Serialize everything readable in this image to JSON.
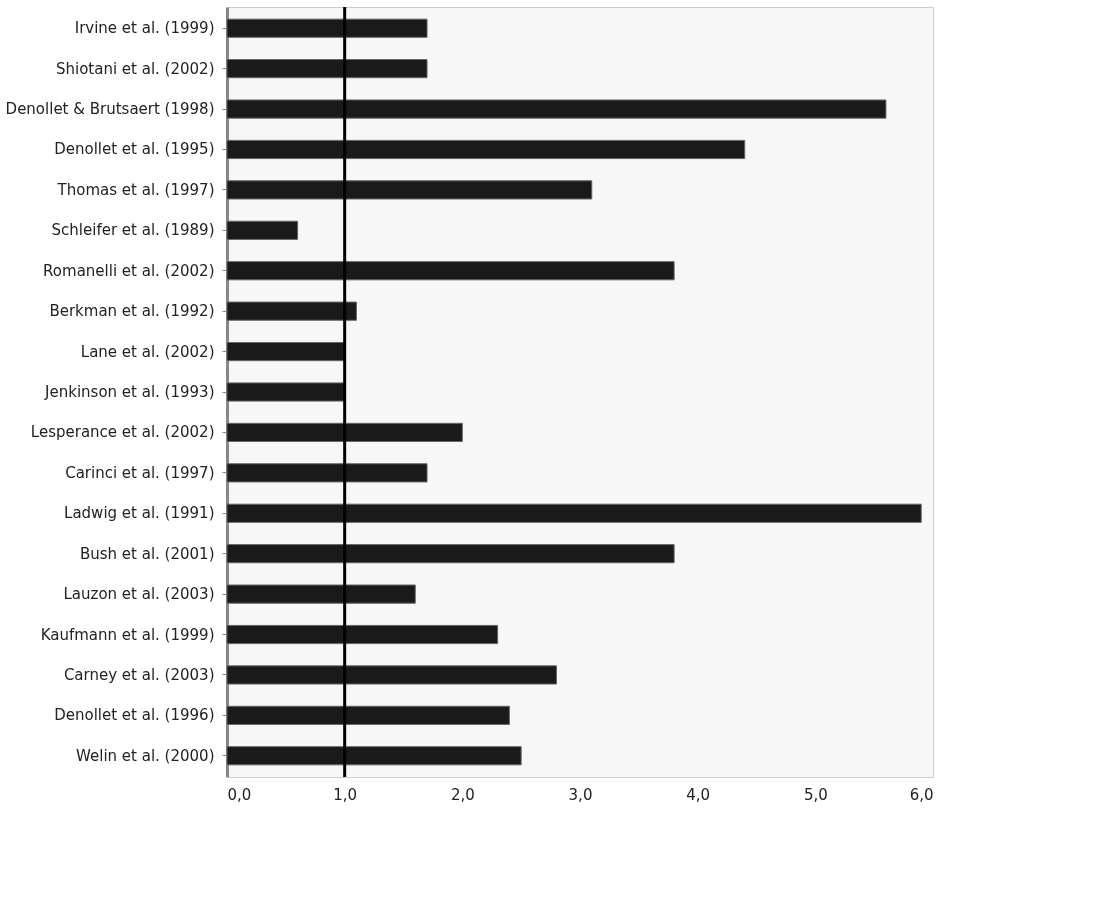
{
  "chart_data": {
    "type": "bar",
    "orientation": "horizontal",
    "categories": [
      "Irvine et al. (1999)",
      "Shiotani et al. (2002)",
      "Denollet & Brutsaert (1998)",
      "Denollet et al. (1995)",
      "Thomas et al. (1997)",
      "Schleifer et al. (1989)",
      "Romanelli et al. (2002)",
      "Berkman et al. (1992)",
      "Lane et al. (2002)",
      "Jenkinson et al. (1993)",
      "Lesperance et al. (2002)",
      "Carinci et al. (1997)",
      "Ladwig et al. (1991)",
      "Bush et al. (2001)",
      "Lauzon et al. (2003)",
      "Kaufmann et al. (1999)",
      "Carney et al. (2003)",
      "Denollet et al. (1996)",
      "Welin et al. (2000)"
    ],
    "values": [
      1.7,
      1.7,
      5.6,
      4.4,
      3.1,
      0.6,
      3.8,
      1.1,
      1.0,
      1.0,
      2.0,
      1.7,
      5.9,
      3.8,
      1.6,
      2.3,
      2.8,
      2.4,
      2.5
    ],
    "color": "#1a1a1a",
    "xlim": [
      0,
      6
    ],
    "xticks": [
      {
        "value": 0,
        "label": "0,0"
      },
      {
        "value": 1,
        "label": "1,0"
      },
      {
        "value": 2,
        "label": "2,0"
      },
      {
        "value": 3,
        "label": "3,0"
      },
      {
        "value": 4,
        "label": "4,0"
      },
      {
        "value": 5,
        "label": "5,0"
      },
      {
        "value": 6,
        "label": "6,0"
      }
    ],
    "ref_lines": [
      {
        "axis": "x",
        "value": 1,
        "label": null,
        "color": "#000000"
      }
    ],
    "grid": false
  }
}
